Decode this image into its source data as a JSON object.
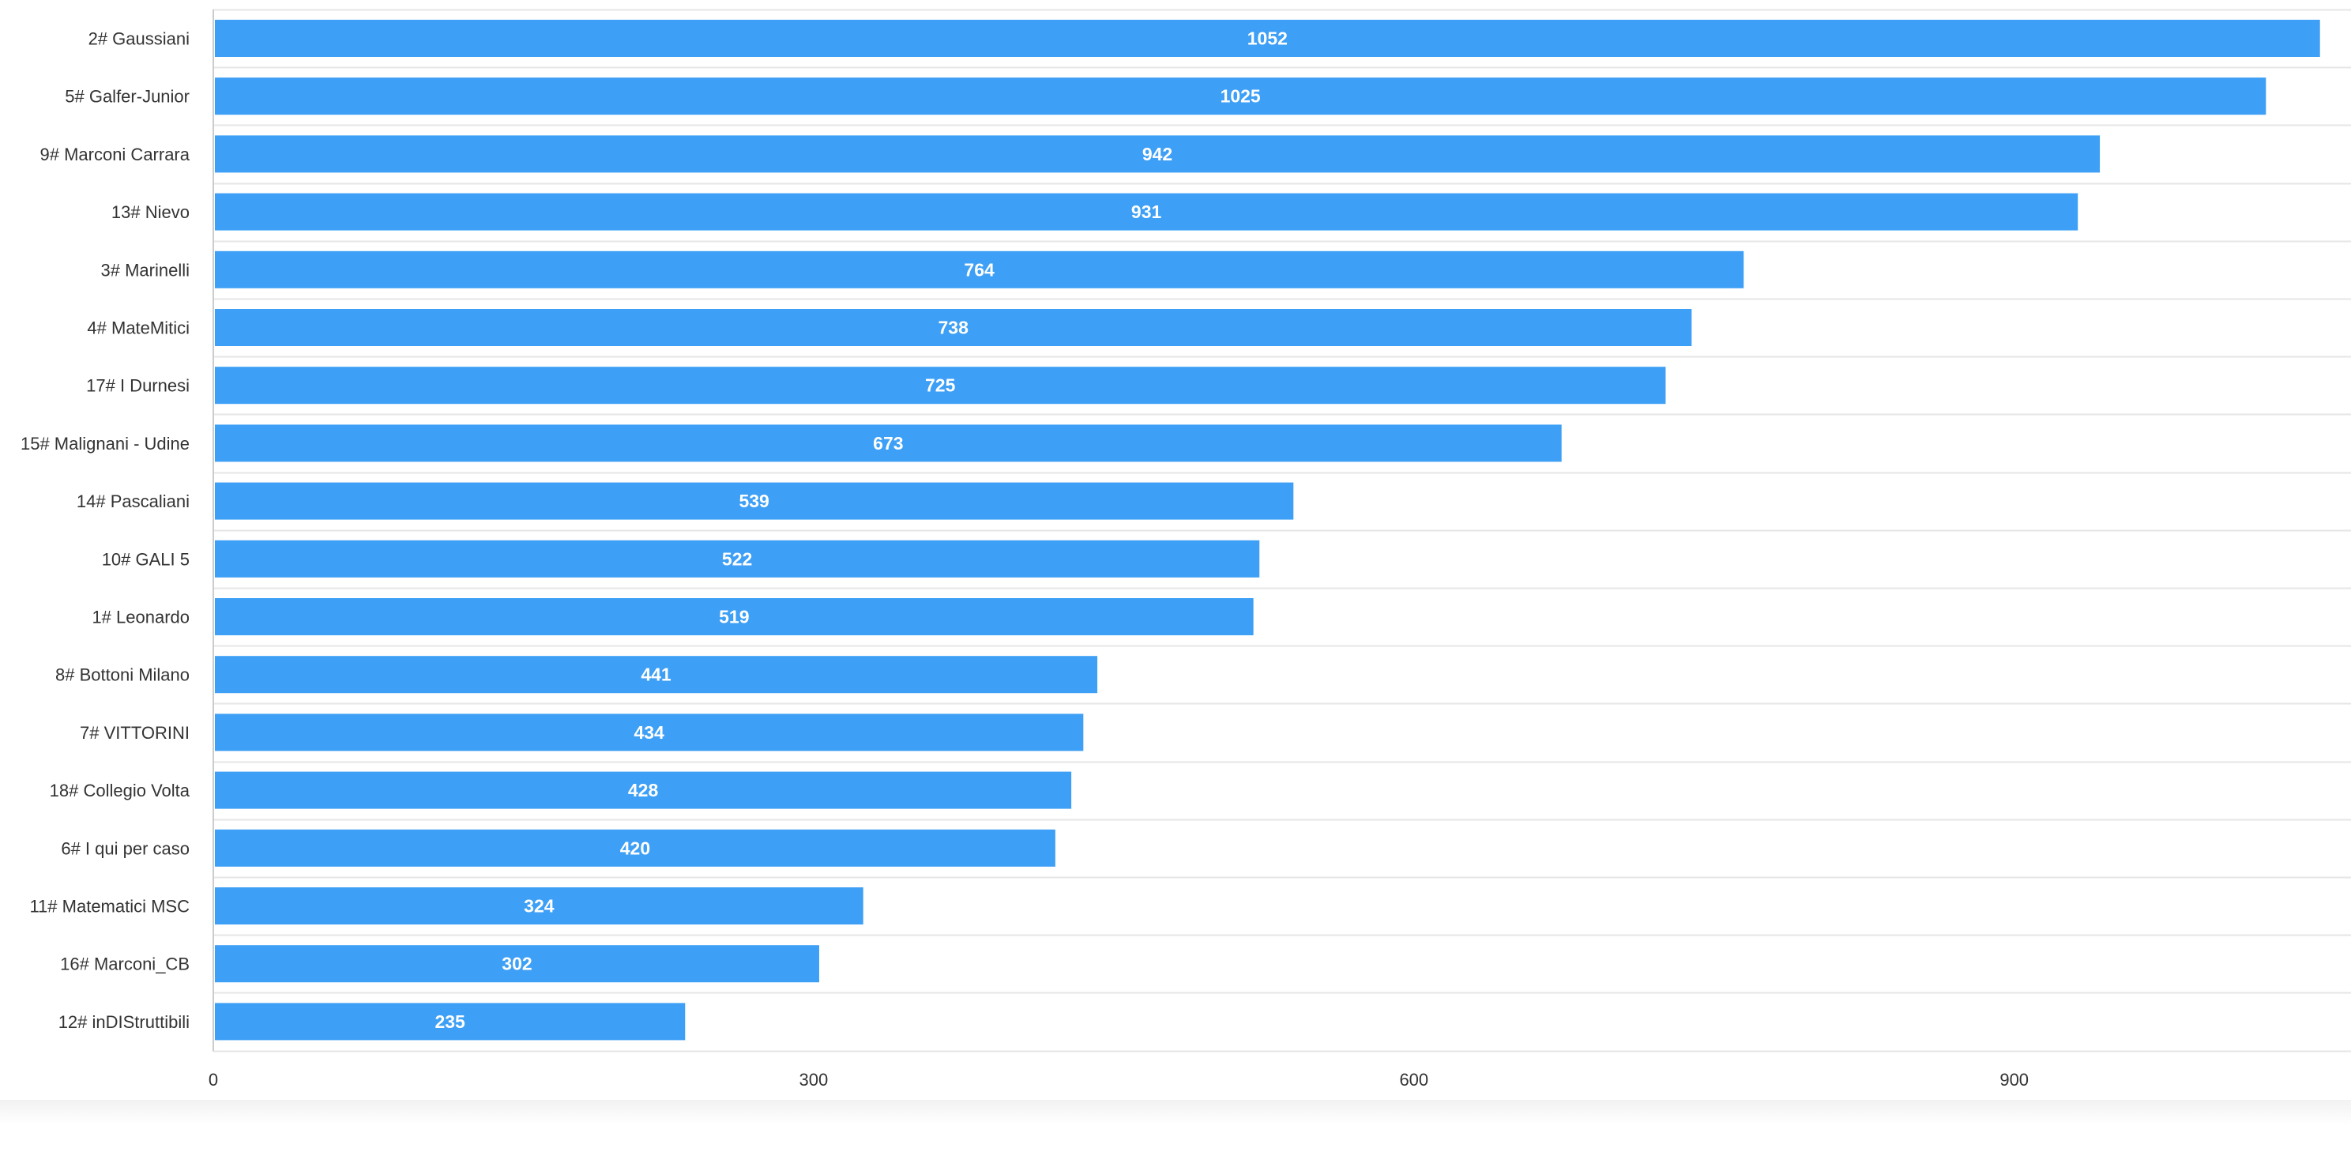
{
  "chart_data": {
    "type": "bar",
    "orientation": "horizontal",
    "title": "",
    "xlabel": "",
    "ylabel": "",
    "xlim": [
      0,
      1052
    ],
    "x_ticks": [
      "0",
      "300",
      "600",
      "900"
    ],
    "categories": [
      "2# Gaussiani",
      "5# Galfer-Junior",
      "9# Marconi Carrara",
      "13# Nievo",
      "3# Marinelli",
      "4# MateMitici",
      "17# I Durnesi",
      "15# Malignani - Udine",
      "14# Pascaliani",
      "10# GALI 5",
      "1# Leonardo",
      "8# Bottoni Milano",
      "7# VITTORINI",
      "18# Collegio Volta",
      "6# I qui per caso",
      "11# Matematici MSC",
      "16# Marconi_CB",
      "12# inDIStruttibili"
    ],
    "values": [
      1052,
      1025,
      942,
      931,
      764,
      738,
      725,
      673,
      539,
      522,
      519,
      441,
      434,
      428,
      420,
      324,
      302,
      235
    ],
    "data_labels": [
      "1052",
      "1025",
      "942",
      "931",
      "764",
      "738",
      "725",
      "673",
      "539",
      "522",
      "519",
      "441",
      "434",
      "428",
      "420",
      "324",
      "302",
      "235"
    ],
    "grid": true,
    "legend": "none",
    "bar_color": "#3d9ff5",
    "grid_color": "#e6e6e6",
    "axis_color": "#cccccc"
  }
}
